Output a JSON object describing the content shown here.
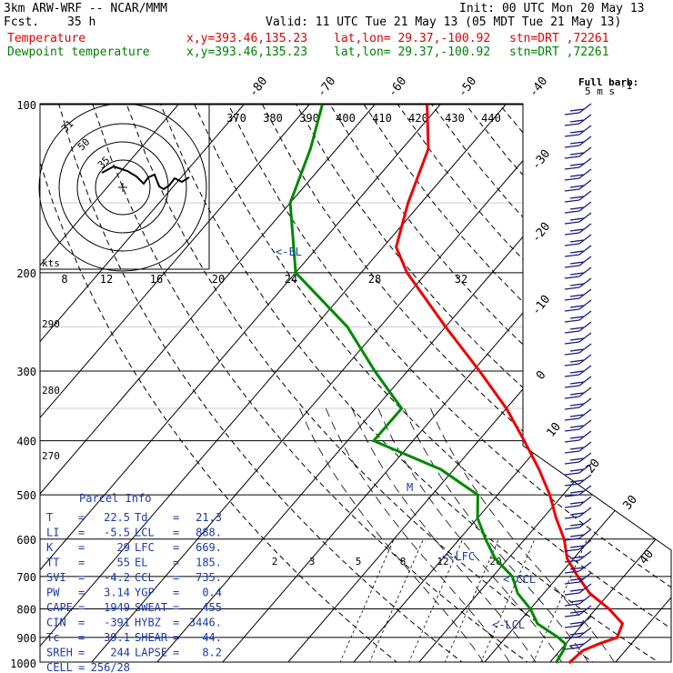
{
  "header": {
    "model": "3km ARW-WRF -- NCAR/MMM",
    "init": "Init: 00 UTC Mon 20 May 13",
    "fcst_label": "Fcst.",
    "fcst_value": "35 h",
    "valid": "Valid: 11 UTC Tue 21 May 13 (05 MDT Tue 21 May 13)",
    "temp_label": "Temperature",
    "dew_label": "Dewpoint temperature",
    "xy": "x,y=393.46,135.23",
    "latlon": "lat,lon= 29.37,-100.92",
    "stn": "stn=DRT ,72261"
  },
  "barb_legend": {
    "line1": "Full barb:",
    "line2": "5 m s",
    "exp": "-1"
  },
  "hodograph": {
    "unit_label": "kts",
    "ring_labels": [
      "31",
      "50",
      "35"
    ]
  },
  "mixing_ratio_labels": [
    "2",
    "3",
    "5",
    "8",
    "12",
    "20"
  ],
  "markers": {
    "el": "<-EL",
    "lfc": "<-LFC",
    "ccl": "<-CCL",
    "lcl": "<-LCL",
    "m": "M"
  },
  "parcel_info": {
    "title": "Parcel Info",
    "rows": [
      [
        "T",
        "22.5",
        "Td",
        "21.3"
      ],
      [
        "LI",
        "-5.5",
        "LCL",
        "888."
      ],
      [
        "K",
        "29",
        "LFC",
        "669."
      ],
      [
        "TT",
        "55",
        "EL",
        "185."
      ],
      [
        "SVI",
        "-4.2",
        "CCL",
        "735."
      ],
      [
        "PW",
        "3.14",
        "YGP",
        "0.4"
      ],
      [
        "CAPE",
        "1949",
        "SWEAT",
        "455"
      ],
      [
        "CIN",
        "-391",
        "HYBZ",
        "3446."
      ],
      [
        "Tc",
        "39.1",
        "SHEAR",
        "44."
      ],
      [
        "SREH",
        "244",
        "LAPSE",
        "8.2"
      ],
      [
        "CELL",
        "256/28",
        "",
        ""
      ]
    ]
  },
  "colors": {
    "temperature": "#ee0000",
    "dewpoint": "#008800",
    "info": "#1a3aa8",
    "barbs": "#1a1a80"
  },
  "chart_data": {
    "type": "line",
    "y_scale": "log pressure",
    "ylabel": "",
    "pressure_ticks": [
      "100",
      "200",
      "300",
      "400",
      "500",
      "600",
      "700",
      "800",
      "900",
      "1000"
    ],
    "isotherm_labels": [
      "-80",
      "-70",
      "-60",
      "-50",
      "-40",
      "-30",
      "-20",
      "-10",
      "0",
      "10",
      "20",
      "30",
      "40"
    ],
    "theta_labels": [
      "370",
      "380",
      "390",
      "400",
      "410",
      "420",
      "430",
      "440"
    ],
    "theta_labels_lower": [
      "290",
      "280",
      "270"
    ],
    "hodo_speed_labels": [
      "8",
      "12",
      "16",
      "20",
      "24",
      "28",
      "32"
    ],
    "series": [
      {
        "name": "Temperature",
        "pressure": [
          1000,
          950,
          925,
          900,
          850,
          800,
          750,
          700,
          650,
          600,
          550,
          500,
          450,
          400,
          350,
          300,
          250,
          200,
          180,
          150,
          120,
          100
        ],
        "temperature": [
          23,
          23.5,
          25,
          27,
          26,
          22,
          17,
          13,
          9,
          6,
          2,
          -2,
          -7,
          -13,
          -20,
          -29,
          -40,
          -53,
          -58,
          -62,
          -66,
          -72
        ]
      },
      {
        "name": "Dewpoint temperature",
        "pressure": [
          1000,
          950,
          925,
          900,
          850,
          800,
          750,
          700,
          650,
          600,
          550,
          500,
          450,
          400,
          350,
          300,
          250,
          200,
          150,
          120,
          100
        ],
        "dewpoint": [
          21,
          20.5,
          20,
          18,
          13,
          10,
          6,
          3,
          -2,
          -6,
          -10,
          -13,
          -22,
          -36,
          -36,
          -45,
          -55,
          -70,
          -80,
          -84,
          -88
        ]
      }
    ]
  }
}
